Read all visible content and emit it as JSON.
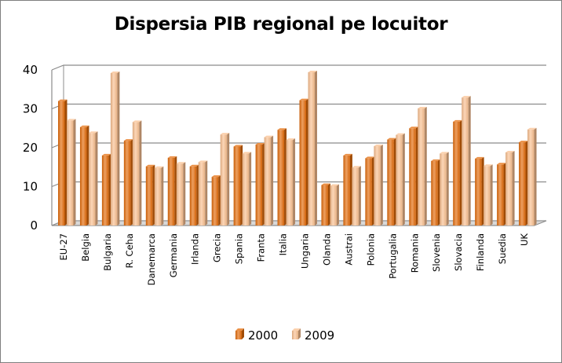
{
  "chart_data": {
    "type": "bar",
    "title": "Dispersia PIB regional pe locuitor",
    "xlabel": "",
    "ylabel": "",
    "ylim": [
      0,
      40
    ],
    "yticks": [
      0,
      10,
      20,
      30,
      40
    ],
    "grid": true,
    "legend_position": "bottom",
    "categories": [
      "EU-27",
      "Belgia",
      "Bulgaria",
      "R. Ceha",
      "Danemarca",
      "Germania",
      "Irlanda",
      "Grecia",
      "Spania",
      "Franta",
      "Italia",
      "Ungaria",
      "Olanda",
      "Austrai",
      "Polonia",
      "Portugalia",
      "Romania",
      "Slovenia",
      "Slovacia",
      "Finlanda",
      "Suedia",
      "UK"
    ],
    "series": [
      {
        "name": "2000",
        "color": "#e46c0a",
        "values": [
          32,
          25.3,
          18,
          21.8,
          15.2,
          17.4,
          15.2,
          12.5,
          20.3,
          20.8,
          24.6,
          32.2,
          10.4,
          18,
          17.3,
          22.1,
          25,
          16.6,
          26.7,
          17.2,
          15.7,
          21.4
        ]
      },
      {
        "name": "2009",
        "color": "#fac090",
        "values": [
          27,
          23.8,
          39.2,
          26.6,
          14.8,
          15.9,
          16.3,
          23.4,
          18.5,
          22.7,
          22,
          39.4,
          10.2,
          14.9,
          20.4,
          23.3,
          30.1,
          18.5,
          32.9,
          15.3,
          18.8,
          24.7
        ]
      }
    ]
  }
}
